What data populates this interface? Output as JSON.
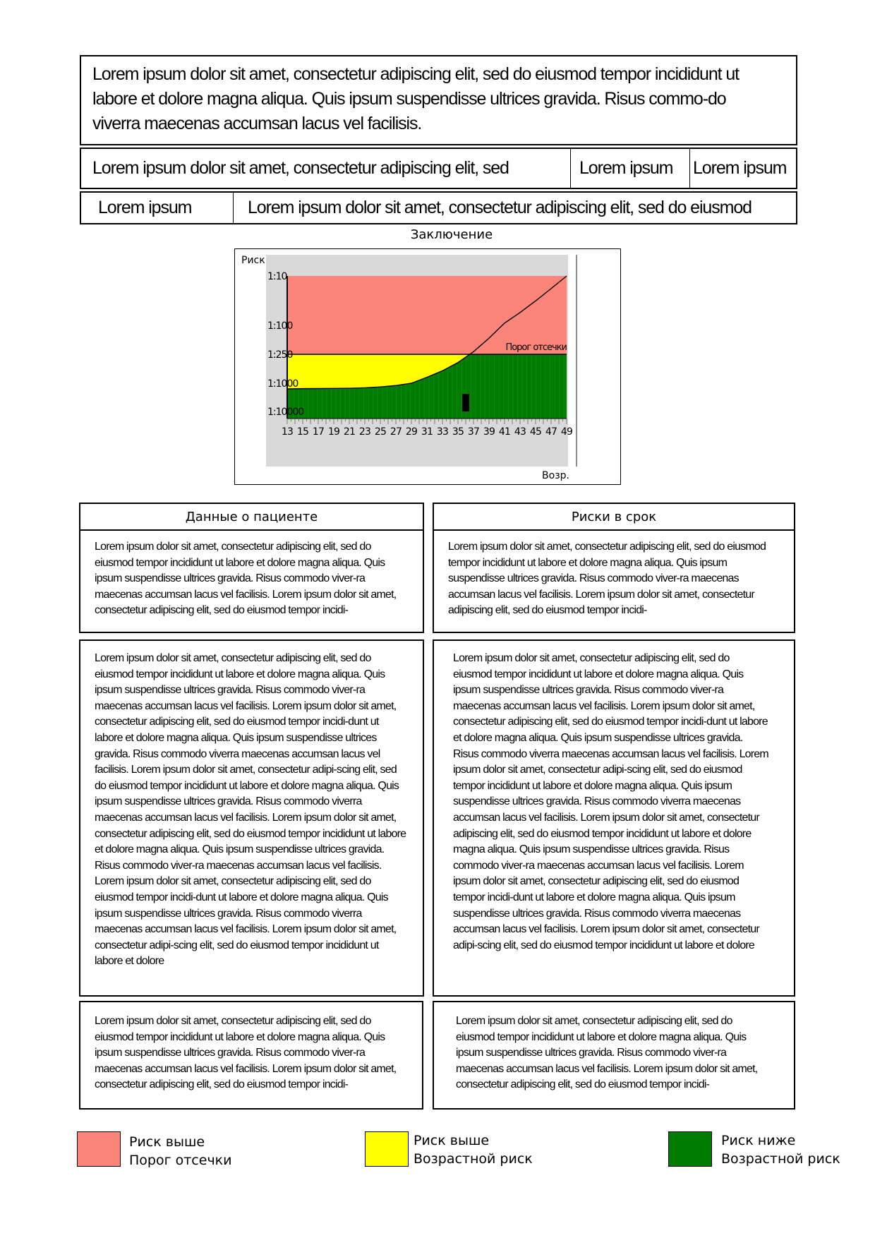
{
  "header": {
    "paragraph": "Lorem ipsum dolor sit amet, consectetur adipiscing elit, sed do eiusmod tempor incididunt ut labore et dolore magna aliqua. Quis ipsum suspendisse ultrices gravida. Risus commo-do viverra maecenas accumsan lacus vel facilisis.",
    "row2": [
      "Lorem ipsum dolor sit amet, consectetur adipiscing elit, sed",
      "Lorem ipsum",
      "Lorem ipsum"
    ],
    "row3": [
      "Lorem ipsum",
      "Lorem ipsum dolor sit amet, consectetur adipiscing elit, sed do eiusmod"
    ]
  },
  "chart_title": "Заключение",
  "chart_data": {
    "type": "line",
    "ylabel": "Риск",
    "xlabel": "Возр.",
    "y_scale": "log",
    "y_ticks": [
      "1:10",
      "1:100",
      "1:250",
      "1:1000",
      "1:10000"
    ],
    "x_ticks": [
      "13",
      "15",
      "17",
      "19",
      "21",
      "23",
      "25",
      "27",
      "29",
      "31",
      "33",
      "35",
      "37",
      "39",
      "41",
      "43",
      "45",
      "47",
      "49"
    ],
    "threshold_label": "Порог отсечки",
    "threshold": "1:250",
    "xlim": [
      13,
      49
    ],
    "zones": [
      {
        "name": "Риск выше Порог отсечки",
        "color": "#FA8578"
      },
      {
        "name": "Риск выше Возрастной риск",
        "color": "#FFFF00"
      },
      {
        "name": "Риск ниже Возрастной риск",
        "color": "#007C00"
      }
    ],
    "series": [
      {
        "x": [
          13,
          15,
          17,
          19,
          21,
          23,
          25,
          27,
          29,
          31,
          33,
          35,
          37,
          39,
          41,
          43,
          45,
          47,
          49
        ],
        "y": [
          1580,
          1550,
          1540,
          1520,
          1500,
          1450,
          1350,
          1200,
          1000,
          750,
          550,
          370,
          230,
          150,
          90,
          55,
          32,
          18,
          10
        ]
      }
    ],
    "patient_marker": {
      "x": 36,
      "y_low": 10000,
      "y_high": 2400
    }
  },
  "panels": {
    "left_title": "Данные о пациенте",
    "right_title": "Риски в срок",
    "left": [
      "Lorem ipsum dolor sit amet, consectetur adipiscing elit, sed do eiusmod tempor incididunt ut labore et dolore magna aliqua. Quis ipsum suspendisse ultrices gravida. Risus commodo viver-ra maecenas accumsan lacus vel facilisis. Lorem ipsum dolor sit amet, consectetur adipiscing elit, sed do eiusmod tempor incidi-",
      "Lorem ipsum dolor sit amet, consectetur adipiscing elit, sed do eiusmod tempor incididunt ut labore et dolore magna aliqua. Quis ipsum suspendisse ultrices gravida. Risus commodo viver-ra maecenas accumsan lacus vel facilisis. Lorem ipsum dolor sit amet, consectetur adipiscing elit, sed do eiusmod tempor incidi-dunt ut labore et dolore magna aliqua. Quis ipsum suspendisse ultrices gravida. Risus commodo viverra maecenas accumsan lacus vel facilisis. Lorem ipsum dolor sit amet, consectetur adipi-scing elit, sed do eiusmod tempor incididunt ut labore et dolore magna aliqua. Quis ipsum suspendisse ultrices gravida. Risus commodo viverra maecenas accumsan lacus vel facilisis. Lorem ipsum dolor sit amet, consectetur adipiscing elit, sed do eiusmod tempor incididunt ut labore et dolore magna aliqua. Quis ipsum suspendisse ultrices gravida. Risus commodo viver-ra maecenas accumsan lacus vel facilisis. Lorem ipsum dolor sit amet, consectetur adipiscing elit, sed do eiusmod tempor incidi-dunt ut labore et dolore magna aliqua. Quis ipsum suspendisse ultrices gravida. Risus commodo viverra maecenas accumsan lacus vel facilisis. Lorem ipsum dolor sit amet, consectetur adipi-scing elit, sed do eiusmod tempor incididunt ut labore et dolore",
      "Lorem ipsum dolor sit amet, consectetur adipiscing elit, sed do eiusmod tempor incididunt ut labore et dolore magna aliqua. Quis ipsum suspendisse ultrices gravida. Risus commodo viver-ra maecenas accumsan lacus vel facilisis. Lorem ipsum dolor sit amet, consectetur adipiscing elit, sed do eiusmod tempor incidi-"
    ],
    "right": [
      "Lorem ipsum dolor sit amet, consectetur adipiscing elit, sed do eiusmod tempor incididunt ut labore et dolore magna aliqua. Quis ipsum suspendisse ultrices gravida. Risus commodo viver-ra maecenas accumsan lacus vel facilisis. Lorem ipsum dolor sit amet, consectetur adipiscing elit, sed do eiusmod tempor incidi-",
      "Lorem ipsum dolor sit amet, consectetur adipiscing elit, sed do eiusmod tempor incididunt ut labore et dolore magna aliqua. Quis ipsum suspendisse ultrices gravida. Risus commodo viver-ra maecenas accumsan lacus vel facilisis. Lorem ipsum dolor sit amet, consectetur adipiscing elit, sed do eiusmod tempor incidi-dunt ut labore et dolore magna aliqua. Quis ipsum suspendisse ultrices gravida. Risus commodo viverra maecenas accumsan lacus vel facilisis. Lorem ipsum dolor sit amet, consectetur adipi-scing elit, sed do eiusmod tempor incididunt ut labore et dolore magna aliqua. Quis ipsum suspendisse ultrices gravida. Risus commodo viverra maecenas accumsan lacus vel facilisis. Lorem ipsum dolor sit amet, consectetur adipiscing elit, sed do eiusmod tempor incididunt ut labore et dolore magna aliqua. Quis ipsum suspendisse ultrices gravida. Risus commodo viver-ra maecenas accumsan lacus vel facilisis. Lorem ipsum dolor sit amet, consectetur adipiscing elit, sed do eiusmod tempor incidi-dunt ut labore et dolore magna aliqua. Quis ipsum suspendisse ultrices gravida. Risus commodo viverra maecenas accumsan lacus vel facilisis. Lorem ipsum dolor sit amet, consectetur adipi-scing elit, sed do eiusmod tempor incididunt ut labore et dolore",
      "Lorem ipsum dolor sit amet, consectetur adipiscing elit, sed do eiusmod tempor incididunt ut labore et dolore magna aliqua. Quis ipsum suspendisse ultrices gravida. Risus commodo viver-ra maecenas accumsan lacus vel facilisis. Lorem ipsum dolor sit amet, consectetur adipiscing elit, sed do eiusmod tempor incidi-"
    ]
  },
  "legend": [
    {
      "line1": "Риск выше",
      "line2": "Порог отсечки",
      "color": "#FA8578"
    },
    {
      "line1": "Риск выше",
      "line2": "Возрастной риск",
      "color": "#FFFF00"
    },
    {
      "line1": "Риск ниже",
      "line2": "Возрастной риск",
      "color": "#007C00"
    }
  ]
}
